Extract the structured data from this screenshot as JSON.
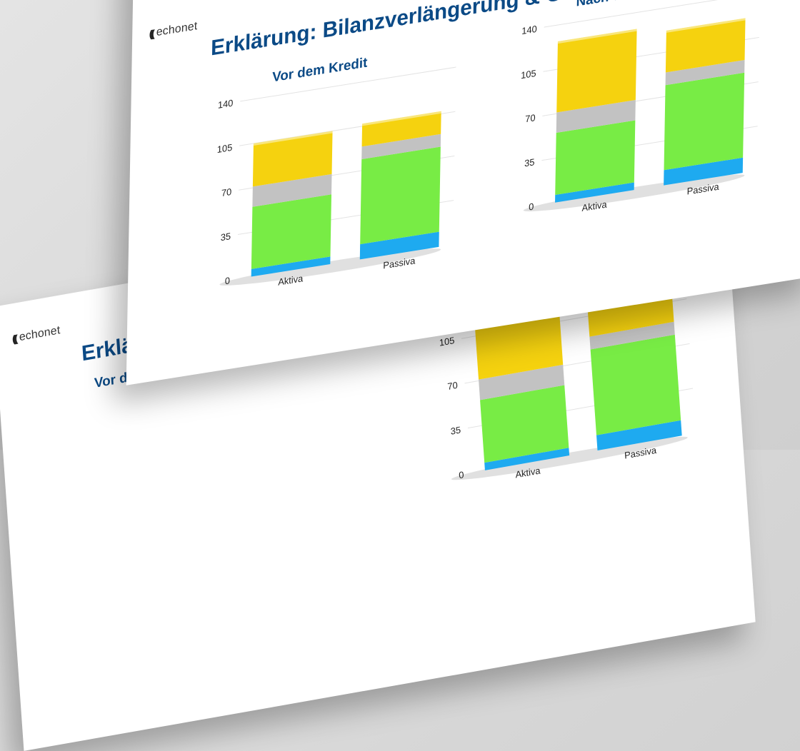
{
  "brand": {
    "logo_mark": "(((",
    "logo_text": "echonet"
  },
  "page_title": "Erklärung: Bilanzverlängerung & Geldschöpfung",
  "colors": {
    "yellow": "#f5d20f",
    "gray": "#c2c2c2",
    "green": "#78ec45",
    "blue": "#1eaaf0",
    "title": "#0b4a86"
  },
  "chart_data": [
    {
      "type": "bar",
      "stacked": true,
      "title": "Vor dem Kredit",
      "categories": [
        "Aktiva",
        "Passiva"
      ],
      "ylim": [
        0,
        140
      ],
      "yticks": [
        0,
        35,
        70,
        105,
        140
      ],
      "series": [
        {
          "color": "#1eaaf0",
          "values": [
            6,
            12
          ]
        },
        {
          "color": "#78ec45",
          "values": [
            49,
            67
          ]
        },
        {
          "color": "#c2c2c2",
          "values": [
            16,
            10
          ]
        },
        {
          "color": "#f5d20f",
          "values": [
            34,
            18
          ]
        }
      ],
      "grid": true
    },
    {
      "type": "bar",
      "stacked": true,
      "title": "Nach dem Kredit",
      "categories": [
        "Aktiva",
        "Passiva"
      ],
      "ylim": [
        0,
        140
      ],
      "yticks": [
        0,
        35,
        70,
        105,
        140
      ],
      "series": [
        {
          "color": "#1eaaf0",
          "values": [
            6,
            12
          ]
        },
        {
          "color": "#78ec45",
          "values": [
            49,
            67
          ]
        },
        {
          "color": "#c2c2c2",
          "values": [
            16,
            10
          ]
        },
        {
          "color": "#f5d20f",
          "values": [
            56,
            33
          ]
        }
      ],
      "grid": true
    }
  ]
}
